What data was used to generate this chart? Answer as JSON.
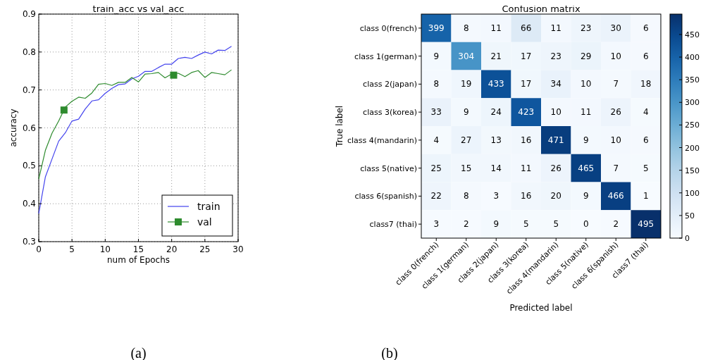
{
  "chart_data": [
    {
      "type": "line",
      "title": "train_acc vs val_acc",
      "xlabel": "num of Epochs",
      "ylabel": "accuracy",
      "xlim": [
        0,
        30
      ],
      "xticks": [
        0,
        5,
        10,
        15,
        20,
        25,
        30
      ],
      "ylim": [
        0.3,
        0.9
      ],
      "yticks": [
        0.3,
        0.4,
        0.5,
        0.6,
        0.7,
        0.8,
        0.9
      ],
      "grid": true,
      "legend": "bottom right",
      "annotations": [
        "(a)"
      ],
      "series": [
        {
          "name": "train",
          "color": "#4444ee",
          "x": [
            0,
            1,
            2,
            3,
            4,
            5,
            6,
            7,
            8,
            9,
            10,
            11,
            12,
            13,
            14,
            15,
            16,
            17,
            18,
            19,
            20,
            21,
            22,
            23,
            24,
            25,
            26,
            27,
            28,
            29
          ],
          "values": [
            0.374,
            0.471,
            0.518,
            0.565,
            0.587,
            0.618,
            0.623,
            0.65,
            0.671,
            0.674,
            0.691,
            0.704,
            0.714,
            0.716,
            0.729,
            0.736,
            0.749,
            0.749,
            0.759,
            0.768,
            0.768,
            0.783,
            0.786,
            0.783,
            0.792,
            0.8,
            0.795,
            0.805,
            0.804,
            0.815
          ]
        },
        {
          "name": "val",
          "color": "#2e8b2e",
          "x": [
            0,
            1,
            2,
            3,
            4,
            5,
            6,
            7,
            8,
            9,
            10,
            11,
            12,
            13,
            14,
            15,
            16,
            17,
            18,
            19,
            20,
            21,
            22,
            23,
            24,
            25,
            26,
            27,
            28,
            29
          ],
          "values": [
            0.465,
            0.541,
            0.586,
            0.618,
            0.655,
            0.67,
            0.681,
            0.678,
            0.692,
            0.715,
            0.717,
            0.712,
            0.72,
            0.72,
            0.733,
            0.721,
            0.742,
            0.743,
            0.746,
            0.732,
            0.742,
            0.744,
            0.735,
            0.746,
            0.751,
            0.733,
            0.746,
            0.743,
            0.74,
            0.753
          ]
        },
        {
          "type": "scatter",
          "marker": "square",
          "color": "#2e8b2e",
          "x": [
            3.8,
            20.3
          ],
          "values": [
            0.647,
            0.739
          ]
        }
      ]
    },
    {
      "type": "heatmap",
      "title": "Confusion matrix",
      "xlabel": "Predicted label",
      "ylabel": "True label",
      "categories": [
        "class 0(french)",
        "class 1(german)",
        "class 2(japan)",
        "class 3(korea)",
        "class 4(mandarin)",
        "class 5(native)",
        "class 6(spanish)",
        "class7 (thai)"
      ],
      "y_categories": [
        "class 0(french)",
        "class 1(german)",
        "class 2(japan)",
        "class 3(korea)",
        "class 4(mandarin)",
        "class 5(native)",
        "class 6(spanish)",
        "class7 (thai)"
      ],
      "clim": [
        0,
        495
      ],
      "cticks": [
        0,
        50,
        100,
        150,
        200,
        250,
        300,
        350,
        400,
        450
      ],
      "data_labels": true,
      "annotations": [
        "(b)"
      ],
      "cells": [
        [
          399,
          8,
          11,
          66,
          11,
          23,
          30,
          6
        ],
        [
          9,
          304,
          21,
          17,
          23,
          29,
          10,
          6
        ],
        [
          8,
          19,
          433,
          17,
          34,
          10,
          7,
          18
        ],
        [
          33,
          9,
          24,
          423,
          10,
          11,
          26,
          4
        ],
        [
          4,
          27,
          13,
          16,
          471,
          9,
          10,
          6
        ],
        [
          25,
          15,
          14,
          11,
          26,
          465,
          7,
          5
        ],
        [
          22,
          8,
          3,
          16,
          20,
          9,
          466,
          1
        ],
        [
          3,
          2,
          9,
          5,
          5,
          0,
          2,
          495
        ]
      ]
    }
  ]
}
